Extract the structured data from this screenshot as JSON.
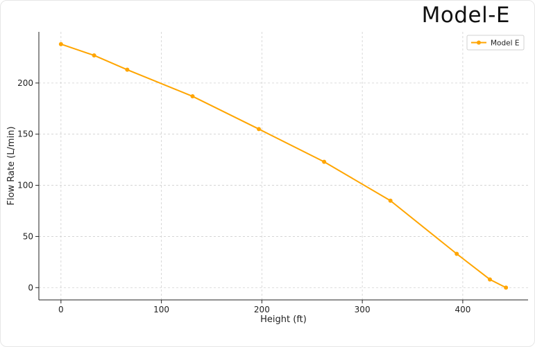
{
  "chart_data": {
    "type": "line",
    "title": "Model-E",
    "xlabel": "Height (ft)",
    "ylabel": "Flow Rate (L/min)",
    "xlim": [
      -22,
      465
    ],
    "ylim": [
      -12,
      250
    ],
    "xticks": [
      0,
      100,
      200,
      300,
      400
    ],
    "yticks": [
      0,
      50,
      100,
      150,
      200
    ],
    "grid": true,
    "legend_position": "top-right",
    "color": "#FFA500",
    "series": [
      {
        "name": "Model E",
        "x": [
          0,
          33,
          66,
          131,
          197,
          262,
          328,
          394,
          427,
          443
        ],
        "y": [
          238,
          227,
          213,
          187,
          155,
          123,
          85,
          33,
          8,
          0
        ]
      }
    ]
  }
}
